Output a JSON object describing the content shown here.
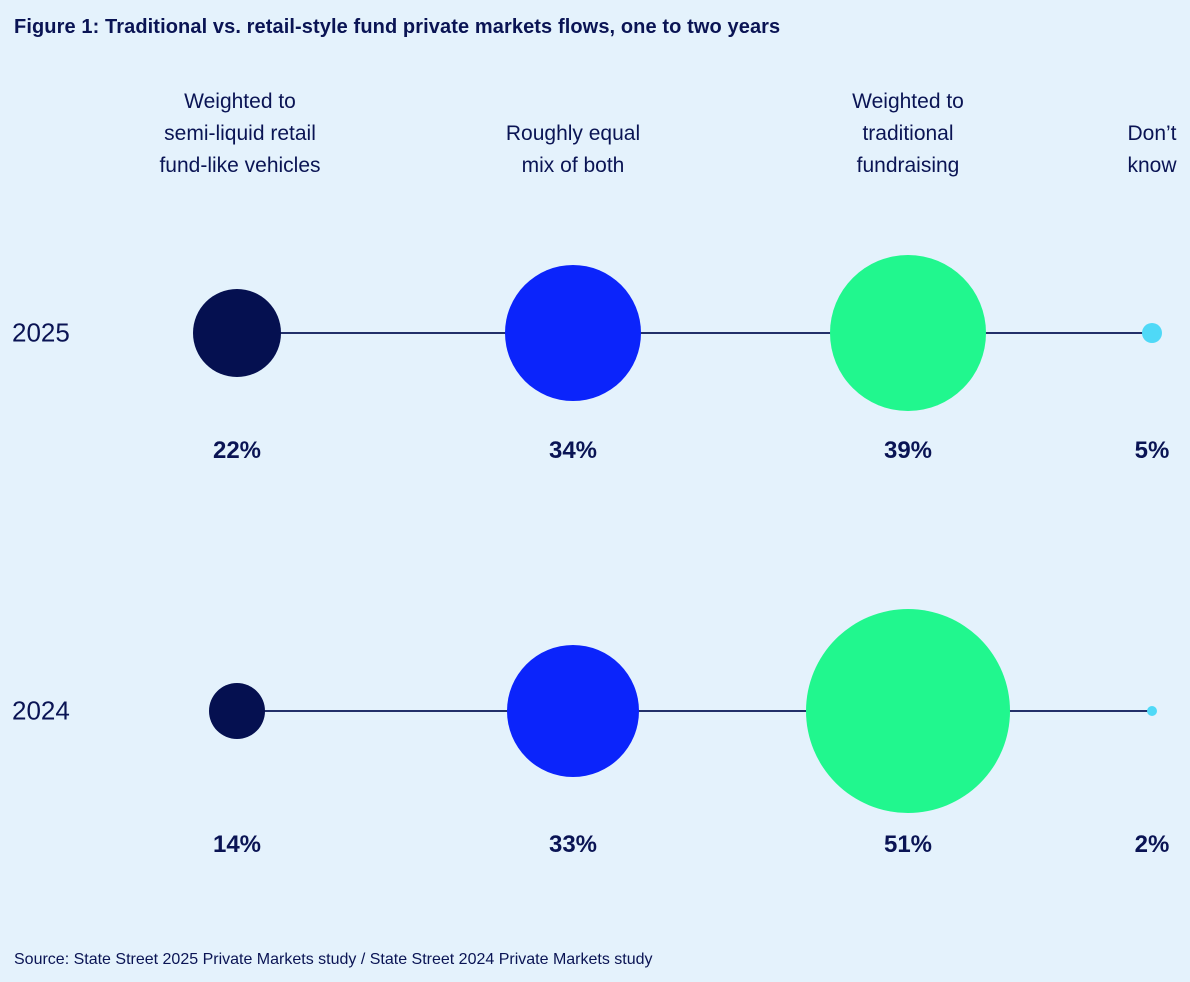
{
  "figure": {
    "title": "Figure 1: Traditional vs. retail-style fund private markets flows, one to two years",
    "source": "Source: State Street 2025 Private Markets study / State Street 2024 Private Markets study"
  },
  "chart_data": {
    "type": "bubble",
    "title": "Figure 1: Traditional vs. retail-style fund private markets flows, one to two years",
    "categories": [
      "Weighted to semi-liquid retail fund-like vehicles",
      "Roughly equal mix of both",
      "Weighted to traditional fundraising",
      "Don’t know"
    ],
    "column_headers_display": [
      "Weighted to\nsemi-liquid retail\nfund-like vehicles",
      "Roughly equal\nmix of both",
      "Weighted to\ntraditional\nfundraising",
      "Don’t\nknow"
    ],
    "rows": [
      {
        "year": "2025",
        "values": [
          22,
          34,
          39,
          5
        ],
        "labels": [
          "22%",
          "34%",
          "39%",
          "5%"
        ]
      },
      {
        "year": "2024",
        "values": [
          14,
          33,
          51,
          2
        ],
        "labels": [
          "14%",
          "33%",
          "51%",
          "2%"
        ]
      }
    ],
    "bubble_colors_by_column": [
      "#051050",
      "#0B24FB",
      "#21F78E",
      "#4FD9F7"
    ],
    "colors": {
      "background": "#E4F2FC",
      "text_navy": "#0A1454",
      "connector_line": "#223069"
    },
    "legend_position": "none",
    "grid": false,
    "size_encoding": "bubble diameter proportional to percentage (~4px per point)"
  }
}
